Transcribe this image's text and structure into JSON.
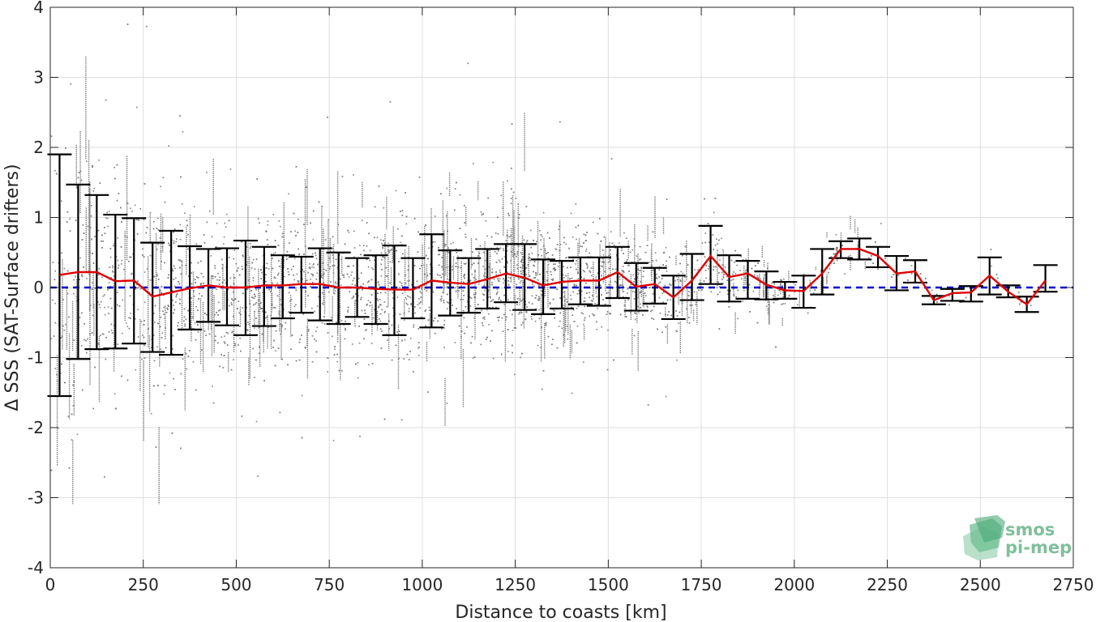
{
  "chart_data": {
    "type": "scatter",
    "xlabel": "Distance to coasts [km]",
    "ylabel": "Δ SSS (SAT-Surface drifters)",
    "xlim": [
      0,
      2750
    ],
    "ylim": [
      -4,
      4
    ],
    "x_ticks": [
      0,
      250,
      500,
      750,
      1000,
      1250,
      1500,
      1750,
      2000,
      2250,
      2500,
      2750
    ],
    "y_ticks": [
      -4,
      -3,
      -2,
      -1,
      0,
      1,
      2,
      3,
      4
    ],
    "grid": true,
    "reference_line": {
      "y": 0,
      "style": "dashed",
      "color": "#0000cc"
    },
    "series": [
      {
        "kind": "mean_line_with_errorbars",
        "color": "#e00000",
        "errorbar_color": "#000000",
        "x": [
          25,
          75,
          125,
          175,
          225,
          275,
          325,
          375,
          425,
          475,
          525,
          575,
          625,
          675,
          725,
          775,
          825,
          875,
          925,
          975,
          1025,
          1075,
          1125,
          1175,
          1225,
          1275,
          1325,
          1375,
          1425,
          1475,
          1525,
          1575,
          1625,
          1675,
          1725,
          1775,
          1825,
          1875,
          1925,
          1975,
          2025,
          2075,
          2125,
          2175,
          2225,
          2275,
          2325,
          2375,
          2425,
          2475,
          2525,
          2575,
          2625,
          2675
        ],
        "mean": [
          0.18,
          0.22,
          0.22,
          0.09,
          0.1,
          -0.13,
          -0.07,
          -0.01,
          0.03,
          0.0,
          0.0,
          0.03,
          0.03,
          0.05,
          0.05,
          0.0,
          0.0,
          -0.02,
          -0.03,
          -0.03,
          0.1,
          0.07,
          0.05,
          0.12,
          0.2,
          0.14,
          0.03,
          0.08,
          0.1,
          0.1,
          0.22,
          0.01,
          0.05,
          -0.14,
          0.1,
          0.45,
          0.15,
          0.2,
          0.04,
          -0.04,
          -0.05,
          0.2,
          0.55,
          0.55,
          0.45,
          0.2,
          0.23,
          -0.18,
          -0.08,
          -0.07,
          0.17,
          -0.06,
          -0.24,
          0.1
        ],
        "lower": [
          -1.55,
          -1.02,
          -0.88,
          -0.87,
          -0.8,
          -0.92,
          -0.96,
          -0.6,
          -0.49,
          -0.54,
          -0.68,
          -0.55,
          -0.44,
          -0.36,
          -0.47,
          -0.52,
          -0.42,
          -0.52,
          -0.68,
          -0.44,
          -0.57,
          -0.4,
          -0.36,
          -0.3,
          -0.21,
          -0.32,
          -0.38,
          -0.3,
          -0.24,
          -0.26,
          -0.15,
          -0.33,
          -0.23,
          -0.45,
          -0.18,
          0.05,
          -0.2,
          -0.16,
          -0.17,
          -0.16,
          -0.29,
          -0.1,
          0.42,
          0.4,
          0.29,
          -0.04,
          0.07,
          -0.24,
          -0.19,
          -0.2,
          -0.1,
          -0.14,
          -0.35,
          -0.06
        ],
        "upper": [
          1.9,
          1.47,
          1.32,
          1.04,
          0.99,
          0.64,
          0.81,
          0.59,
          0.55,
          0.56,
          0.67,
          0.58,
          0.46,
          0.44,
          0.56,
          0.5,
          0.42,
          0.46,
          0.6,
          0.42,
          0.76,
          0.53,
          0.42,
          0.55,
          0.62,
          0.62,
          0.4,
          0.38,
          0.43,
          0.43,
          0.58,
          0.35,
          0.28,
          0.17,
          0.48,
          0.88,
          0.46,
          0.38,
          0.23,
          0.08,
          0.17,
          0.55,
          0.66,
          0.7,
          0.58,
          0.45,
          0.39,
          -0.12,
          -0.02,
          0.02,
          0.43,
          0.03,
          -0.13,
          0.32
        ]
      },
      {
        "kind": "raw_points",
        "color": "#808080",
        "description_only": false,
        "density_profile": {
          "x": [
            0,
            250,
            500,
            750,
            1000,
            1250,
            1500,
            1750,
            2000,
            2250,
            2500,
            2700
          ],
          "spread": [
            2.2,
            1.6,
            1.2,
            1.1,
            1.0,
            1.1,
            0.8,
            0.6,
            0.3,
            0.25,
            0.2,
            0.15
          ],
          "density": [
            0.6,
            0.9,
            1.0,
            1.0,
            1.0,
            1.4,
            0.9,
            0.5,
            0.15,
            0.08,
            0.06,
            0.04
          ]
        }
      }
    ]
  },
  "logo": {
    "line1": "smos",
    "line2": "pi-mep"
  }
}
